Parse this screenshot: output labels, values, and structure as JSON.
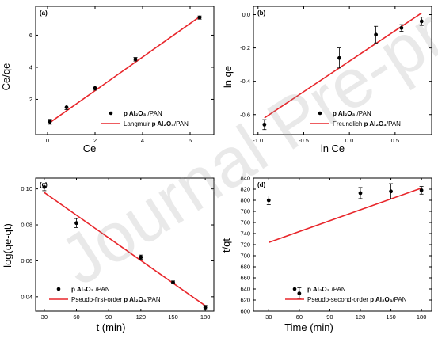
{
  "watermark": "Journal Pre-proof",
  "colors": {
    "fit": "#e8262b",
    "point": "#000000",
    "axis": "#000000"
  },
  "chart_data": [
    {
      "id": "a",
      "type": "scatter",
      "panel_label": "(a)",
      "xlabel": "Ce",
      "ylabel": "Ce/qe",
      "xlim": [
        -0.5,
        7
      ],
      "ylim": [
        -0.2,
        7.8
      ],
      "xticks": [
        0,
        2,
        4,
        6
      ],
      "yticks": [
        2,
        4,
        6
      ],
      "legend_position": "bottom-right",
      "series": [
        {
          "name": "p Al₂O₃ /PAN",
          "kind": "points",
          "x": [
            0.1,
            0.8,
            2.0,
            3.7,
            6.4
          ],
          "y": [
            0.6,
            1.5,
            2.7,
            4.5,
            7.1
          ],
          "err": [
            0.15,
            0.15,
            0.13,
            0.11,
            0.1
          ]
        },
        {
          "name": "Langmuir p Al₂O₃/PAN",
          "kind": "line",
          "x": [
            0.1,
            6.4
          ],
          "y": [
            0.55,
            7.15
          ]
        }
      ]
    },
    {
      "id": "b",
      "type": "scatter",
      "panel_label": "(b)",
      "xlabel": "ln Ce",
      "ylabel": "ln qe",
      "xlim": [
        -1.05,
        0.9
      ],
      "ylim": [
        -0.72,
        0.05
      ],
      "xticks": [
        -1.0,
        -0.5,
        0.0,
        0.5
      ],
      "yticks": [
        0.0,
        -0.2,
        -0.4,
        -0.6
      ],
      "tick_labels_x": [
        "-1.0",
        "-0.5",
        "0.0",
        "0.5"
      ],
      "tick_labels_y": [
        "0.0",
        "-0.2",
        "-0.4",
        "-0.6"
      ],
      "legend_position": "bottom-right",
      "series": [
        {
          "name": "p Al₂O₃ /PAN",
          "kind": "points",
          "x": [
            -0.93,
            -0.11,
            0.29,
            0.57,
            0.79
          ],
          "y": [
            -0.66,
            -0.26,
            -0.12,
            -0.08,
            -0.04
          ],
          "err": [
            0.03,
            0.06,
            0.05,
            0.02,
            0.025
          ]
        },
        {
          "name": "Freundlich p Al₂O₃/PAN",
          "kind": "line",
          "x": [
            -0.93,
            0.79
          ],
          "y": [
            -0.62,
            0.01
          ]
        }
      ]
    },
    {
      "id": "c",
      "type": "scatter",
      "panel_label": "(c)",
      "xlabel": "t (min)",
      "ylabel": "log(qe-qt)",
      "xlim": [
        22,
        188
      ],
      "ylim": [
        0.032,
        0.106
      ],
      "xticks": [
        30,
        60,
        90,
        120,
        150,
        180
      ],
      "yticks": [
        0.04,
        0.06,
        0.08,
        0.1
      ],
      "tick_labels_y": [
        "0.04",
        "0.06",
        "0.08",
        "0.10"
      ],
      "legend_position": "bottom-left",
      "series": [
        {
          "name": "p Al₂O₃ /PAN",
          "kind": "points",
          "x": [
            30,
            60,
            120,
            150,
            180
          ],
          "y": [
            0.101,
            0.081,
            0.062,
            0.048,
            0.034
          ],
          "err": [
            0.002,
            0.0025,
            0.0012,
            0.0008,
            0.0012
          ]
        },
        {
          "name": "Pseudo-first-order p Al₂O₃/PAN",
          "kind": "line",
          "x": [
            30,
            180
          ],
          "y": [
            0.098,
            0.035
          ]
        }
      ]
    },
    {
      "id": "d",
      "type": "scatter",
      "panel_label": "(d)",
      "xlabel": "Time (min)",
      "ylabel": "t/qt",
      "xlim": [
        15,
        190
      ],
      "ylim": [
        600,
        840
      ],
      "xticks": [
        30,
        60,
        90,
        120,
        150,
        180
      ],
      "yticks": [
        600,
        620,
        640,
        660,
        680,
        700,
        720,
        740,
        760,
        780,
        800,
        820,
        840
      ],
      "legend_position": "bottom-right",
      "series": [
        {
          "name": "p Al₂O₃ /PAN",
          "kind": "points",
          "x": [
            30,
            60,
            120,
            150,
            180
          ],
          "y": [
            800,
            632,
            813,
            816,
            818
          ],
          "err": [
            8,
            10,
            10,
            14,
            7
          ]
        },
        {
          "name": "Pseudo-second-order p Al₂O₃/PAN",
          "kind": "line",
          "x": [
            30,
            180
          ],
          "y": [
            724,
            822
          ]
        }
      ]
    }
  ]
}
